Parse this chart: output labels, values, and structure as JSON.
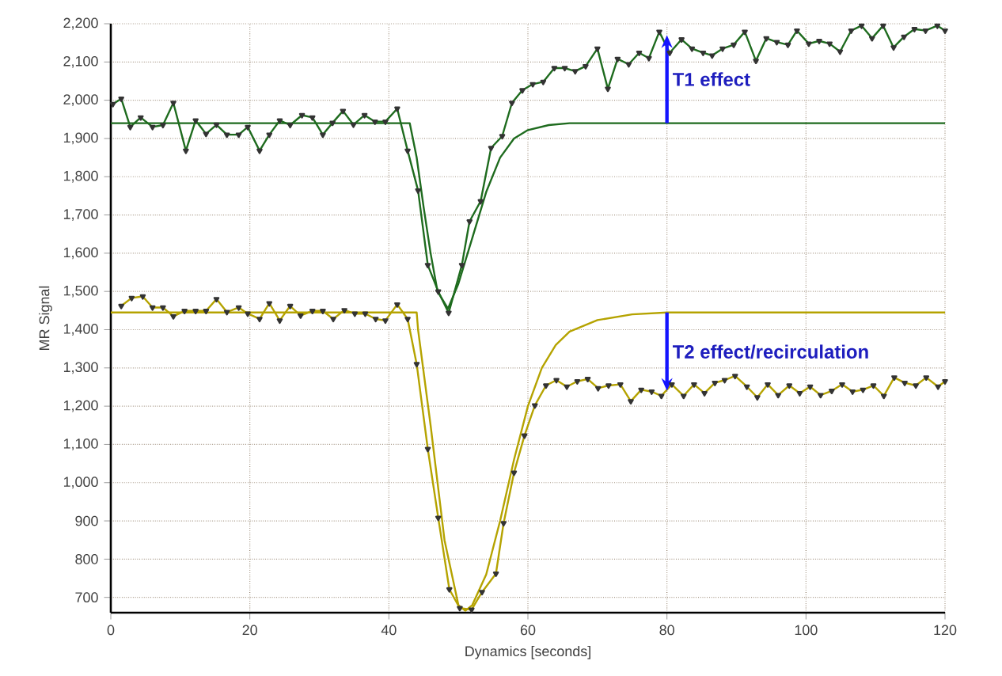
{
  "chart_data": {
    "type": "line",
    "xlabel": "Dynamics [seconds]",
    "ylabel": "MR Signal",
    "xlim": [
      0,
      120
    ],
    "ylim": [
      660,
      2200
    ],
    "xticks": [
      0,
      20,
      40,
      60,
      80,
      100,
      120
    ],
    "yticks": [
      {
        "value": 700,
        "label": "700"
      },
      {
        "value": 800,
        "label": "800"
      },
      {
        "value": 900,
        "label": "900"
      },
      {
        "value": 1000,
        "label": "1,000"
      },
      {
        "value": 1100,
        "label": "1,100"
      },
      {
        "value": 1200,
        "label": "1,200"
      },
      {
        "value": 1300,
        "label": "1,300"
      },
      {
        "value": 1400,
        "label": "1,400"
      },
      {
        "value": 1500,
        "label": "1,500"
      },
      {
        "value": 1600,
        "label": "1,600"
      },
      {
        "value": 1700,
        "label": "1,700"
      },
      {
        "value": 1800,
        "label": "1,800"
      },
      {
        "value": 1900,
        "label": "1,900"
      },
      {
        "value": 2000,
        "label": "2,000"
      },
      {
        "value": 2100,
        "label": "2,100"
      },
      {
        "value": 2200,
        "label": "2,200"
      }
    ],
    "grid": true,
    "line_style": "solid",
    "series": [
      {
        "color": "#1e6b1e",
        "marker": "triangle",
        "x": [
          0.3,
          1.5,
          2.8,
          4.3,
          6,
          7.5,
          9,
          10.8,
          12.2,
          13.7,
          15.2,
          16.7,
          18.4,
          19.7,
          21.4,
          22.8,
          24.3,
          25.8,
          27.5,
          29,
          30.5,
          31.9,
          33.4,
          34.9,
          36.5,
          38,
          39.5,
          41.2,
          42.7,
          44.2,
          45.6,
          47.1,
          48.6,
          50.5,
          51.6,
          53.2,
          54.7,
          56.3,
          57.7,
          59.2,
          60.7,
          62.2,
          63.8,
          65.3,
          66.8,
          68.3,
          70,
          71.5,
          72.9,
          74.5,
          76,
          77.4,
          78.9,
          80.4,
          82.1,
          83.6,
          85.2,
          86.5,
          88,
          89.6,
          91.2,
          92.8,
          94.3,
          95.8,
          97.4,
          98.7,
          100.4,
          101.9,
          103.4,
          104.9,
          106.5,
          108,
          109.5,
          111.1,
          112.6,
          114.1,
          115.6,
          117.2,
          118.9,
          120
        ],
        "values": [
          1990,
          2004,
          1930,
          1955,
          1930,
          1935,
          1993,
          1868,
          1947,
          1912,
          1936,
          1910,
          1910,
          1930,
          1868,
          1910,
          1947,
          1935,
          1961,
          1955,
          1910,
          1941,
          1972,
          1936,
          1961,
          1944,
          1944,
          1978,
          1868,
          1764,
          1569,
          1500,
          1444,
          1569,
          1683,
          1736,
          1875,
          1906,
          1993,
          2026,
          2042,
          2048,
          2084,
          2084,
          2076,
          2089,
          2135,
          2030,
          2108,
          2094,
          2124,
          2110,
          2179,
          2124,
          2159,
          2135,
          2124,
          2117,
          2135,
          2145,
          2179,
          2103,
          2162,
          2152,
          2145,
          2182,
          2148,
          2155,
          2148,
          2127,
          2182,
          2195,
          2162,
          2195,
          2138,
          2166,
          2186,
          2182,
          2195,
          2182
        ]
      },
      {
        "color": "#1e6b1e",
        "marker": "none",
        "x": [
          0,
          43,
          44,
          45,
          46,
          47,
          48.5,
          50,
          52,
          54,
          56,
          58,
          60,
          63,
          66,
          120
        ],
        "values": [
          1940,
          1940,
          1850,
          1720,
          1600,
          1500,
          1455,
          1520,
          1640,
          1760,
          1850,
          1900,
          1922,
          1935,
          1940,
          1940
        ]
      },
      {
        "color": "#b5a300",
        "marker": "triangle",
        "x": [
          1.5,
          3,
          4.6,
          6,
          7.5,
          9,
          10.6,
          12.2,
          13.7,
          15.2,
          16.7,
          18.4,
          19.7,
          21.4,
          22.8,
          24.3,
          25.8,
          27.3,
          29,
          30.5,
          32,
          33.6,
          35.1,
          36.6,
          38.1,
          39.5,
          41.2,
          42.7,
          44,
          45.6,
          47.1,
          48.7,
          50.2,
          51.9,
          53.4,
          55.4,
          56.5,
          58,
          59.5,
          61,
          62.6,
          64.1,
          65.6,
          67.1,
          68.6,
          70.1,
          71.6,
          73.3,
          74.8,
          76.3,
          77.8,
          79.2,
          80.7,
          82.4,
          83.9,
          85.4,
          86.9,
          88.3,
          89.8,
          91.5,
          93,
          94.5,
          96,
          97.6,
          99.1,
          100.6,
          102.1,
          103.7,
          105.2,
          106.7,
          108.2,
          109.7,
          111.2,
          112.7,
          114.2,
          115.8,
          117.3,
          119,
          120
        ],
        "values": [
          1462,
          1483,
          1487,
          1458,
          1458,
          1435,
          1449,
          1449,
          1449,
          1480,
          1446,
          1458,
          1442,
          1428,
          1469,
          1424,
          1462,
          1437,
          1449,
          1449,
          1428,
          1451,
          1442,
          1442,
          1428,
          1424,
          1466,
          1428,
          1310,
          1088,
          908,
          721,
          672,
          668,
          714,
          762,
          894,
          1026,
          1123,
          1202,
          1254,
          1268,
          1251,
          1265,
          1271,
          1247,
          1254,
          1257,
          1213,
          1243,
          1238,
          1227,
          1257,
          1227,
          1257,
          1234,
          1261,
          1268,
          1279,
          1251,
          1223,
          1257,
          1229,
          1254,
          1234,
          1251,
          1229,
          1240,
          1257,
          1238,
          1243,
          1254,
          1227,
          1275,
          1261,
          1254,
          1275,
          1251,
          1265
        ]
      },
      {
        "color": "#b5a300",
        "marker": "none",
        "x": [
          0,
          44,
          44.2,
          46,
          48,
          50,
          51,
          52,
          54,
          56,
          58,
          60,
          62,
          64,
          66,
          70,
          75,
          80,
          120
        ],
        "values": [
          1445,
          1445,
          1400,
          1150,
          850,
          680,
          665,
          680,
          760,
          900,
          1060,
          1200,
          1300,
          1360,
          1395,
          1425,
          1440,
          1445,
          1445
        ]
      }
    ],
    "annotations": [
      {
        "text": "T1 effect",
        "x": 80,
        "y": 2170
      },
      {
        "text": "T2 effect/recirculation",
        "x": 80,
        "y": 1240
      }
    ]
  }
}
